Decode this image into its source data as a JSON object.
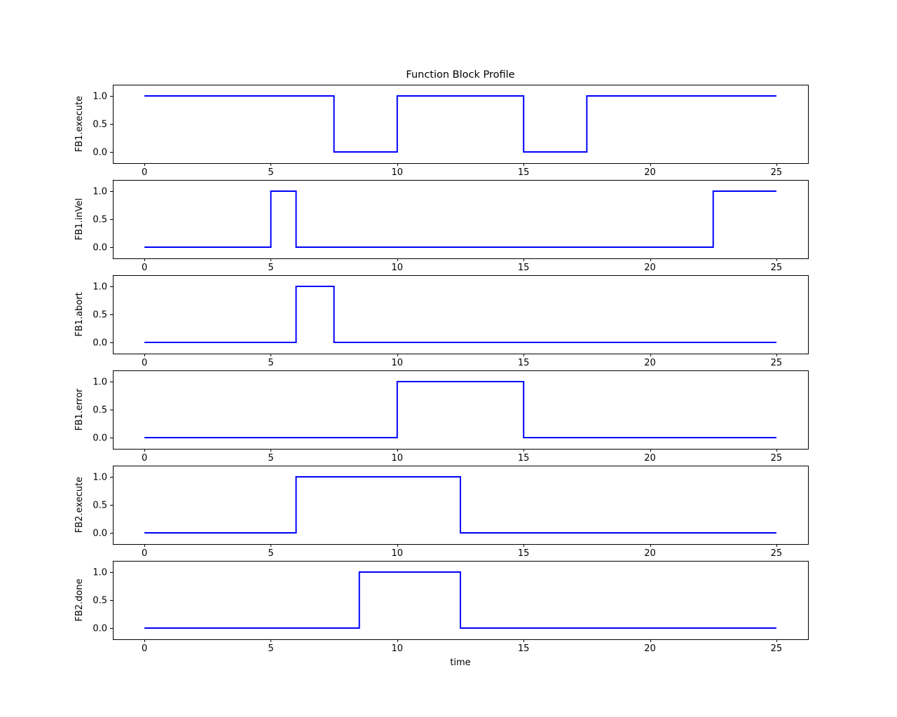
{
  "chart_data": {
    "type": "line",
    "subtype": "step-post",
    "title": "Function Block Profile",
    "xlabel": "time",
    "grid": false,
    "legend": "none",
    "x_end": 25,
    "xlim": [
      -1.25,
      26.25
    ],
    "ylim": [
      -0.2,
      1.2
    ],
    "xticks": [
      0,
      5,
      10,
      15,
      20,
      25
    ],
    "yticks": [
      0.0,
      0.5,
      1.0
    ],
    "ytick_labels": [
      "0.0",
      "0.5",
      "1.0"
    ],
    "line_color": "#0000ff",
    "frame_color": "#000000",
    "text_color": "#000000",
    "background": "#ffffff",
    "series": [
      {
        "name": "FB1.execute",
        "steps": [
          [
            0,
            1
          ],
          [
            7.5,
            0
          ],
          [
            10,
            1
          ],
          [
            15,
            0
          ],
          [
            17.5,
            1
          ]
        ]
      },
      {
        "name": "FB1.inVel",
        "steps": [
          [
            0,
            0
          ],
          [
            5,
            1
          ],
          [
            6,
            0
          ],
          [
            22.5,
            1
          ]
        ]
      },
      {
        "name": "FB1.abort",
        "steps": [
          [
            0,
            0
          ],
          [
            6,
            1
          ],
          [
            7.5,
            0
          ]
        ]
      },
      {
        "name": "FB1.error",
        "steps": [
          [
            0,
            0
          ],
          [
            10,
            1
          ],
          [
            15,
            0
          ]
        ]
      },
      {
        "name": "FB2.execute",
        "steps": [
          [
            0,
            0
          ],
          [
            6,
            1
          ],
          [
            12.5,
            0
          ]
        ]
      },
      {
        "name": "FB2.done",
        "steps": [
          [
            0,
            0
          ],
          [
            8.5,
            1
          ],
          [
            12.5,
            0
          ]
        ]
      }
    ]
  }
}
